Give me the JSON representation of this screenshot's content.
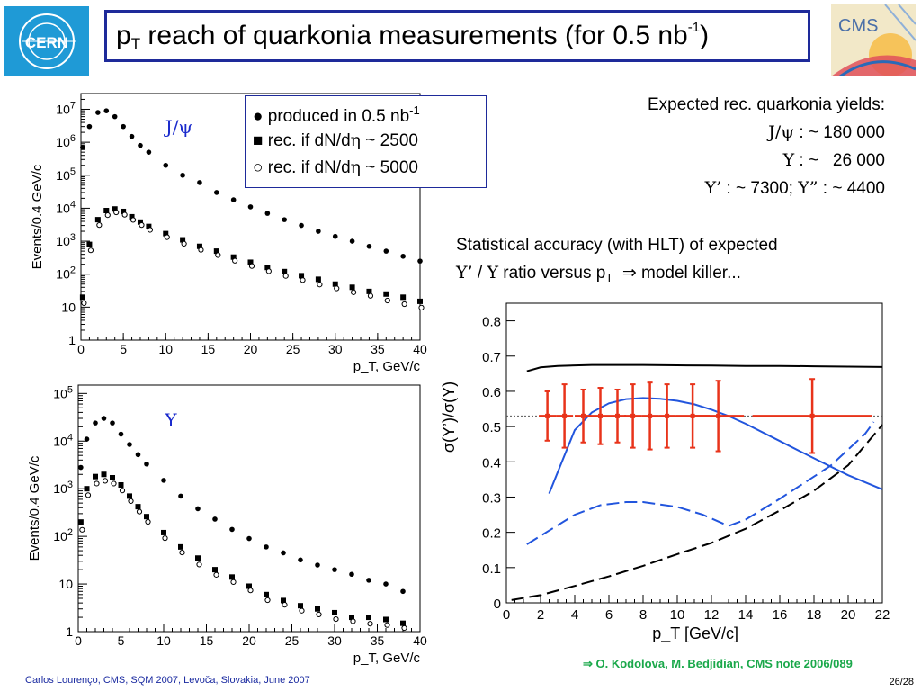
{
  "title": {
    "pre": "p",
    "sub": "T",
    "main": " reach of quarkonia measurements (for 0.5 nb",
    "sup": "-1",
    "post": ")"
  },
  "logos": {
    "cern": "CERN",
    "cms": "CMS"
  },
  "legend": {
    "produced": "produced in 0.5 nb",
    "produced_sup": "-1",
    "rec2500_pre": "rec. if dN/d",
    "rec2500_eta": "η",
    "rec2500_post": " ~ 2500",
    "rec5000_pre": "rec. if dN/d",
    "rec5000_eta": "η",
    "rec5000_post": " ~ 5000",
    "marker_produced": "●",
    "marker_rec2500": "■",
    "marker_rec5000": "○"
  },
  "yields": {
    "heading": "Expected rec. quarkonia yields:",
    "jpsi_label": "J/ψ",
    "jpsi_value": " : ~ 180 000",
    "upsilon_label": "Υ",
    "upsilon_value": " : ~   26 000",
    "up2_label": "Υ’",
    "up2_value": " : ~ 7300; ",
    "up3_label": "Υ”",
    "up3_value": " : ~ 4400"
  },
  "stat": {
    "line1": "Statistical accuracy (with HLT) of expected",
    "ratio_num": "Υ’",
    "ratio_sep": " / ",
    "ratio_den": "Υ",
    "line2_mid": " ratio versus p",
    "line2_sub": "T",
    "arrow": "⇒",
    "line2_end": " model killer..."
  },
  "reference": "⇒ O. Kodolova, M. Bedjidian, CMS note 2006/089",
  "footer": "Carlos Lourenço, CMS, SQM 2007, Levoča, Slovakia, June 2007",
  "page": "26/28",
  "colors": {
    "title_border": "#1e2a9a",
    "label_blue": "#1a2acc",
    "solid_blue": "#2255dd",
    "red": "#e8331a",
    "ref_green": "#1aa84a",
    "cern_blue": "#1f9ad6"
  },
  "chart_data": [
    {
      "id": "jpsi",
      "type": "scatter",
      "title": "J/ψ",
      "xlabel": "p_T, GeV/c",
      "ylabel": "Events/0.4 GeV/c",
      "log_y": true,
      "xlim": [
        0,
        40
      ],
      "ylim": [
        1,
        30000000
      ],
      "x_ticks": [
        "0",
        "5",
        "10",
        "15",
        "20",
        "25",
        "30",
        "35",
        "40"
      ],
      "y_ticks": [
        "1",
        "10",
        "10^2",
        "10^3",
        "10^4",
        "10^5",
        "10^6",
        "10^7"
      ],
      "series": [
        {
          "name": "produced in 0.5 nb-1",
          "marker": "filled-circle",
          "x": [
            0.2,
            1.0,
            2.0,
            3.0,
            4.0,
            5.0,
            6.0,
            7.0,
            8.0,
            10.0,
            12.0,
            14.0,
            16.0,
            18.0,
            20.0,
            22.0,
            24.0,
            26.0,
            28.0,
            30.0,
            32.0,
            34.0,
            36.0,
            38.0,
            40.0
          ],
          "y": [
            700000,
            3000000,
            8000000,
            9000000,
            6000000,
            3000000,
            1500000,
            800000,
            500000,
            200000,
            100000,
            60000,
            30000,
            18000,
            11000,
            7000,
            4500,
            3000,
            2000,
            1400,
            1000,
            700,
            500,
            350,
            250
          ]
        },
        {
          "name": "rec. if dN/dη ~ 2500",
          "marker": "filled-square",
          "x": [
            0.2,
            1.0,
            2.0,
            3.0,
            4.0,
            5.0,
            6.0,
            7.0,
            8.0,
            10.0,
            12.0,
            14.0,
            16.0,
            18.0,
            20.0,
            22.0,
            24.0,
            26.0,
            28.0,
            30.0,
            32.0,
            34.0,
            36.0,
            38.0,
            40.0
          ],
          "y": [
            20,
            800,
            4500,
            8500,
            9500,
            8000,
            5500,
            3800,
            2800,
            1700,
            1100,
            700,
            500,
            330,
            230,
            160,
            120,
            90,
            70,
            50,
            40,
            30,
            25,
            20,
            15
          ]
        },
        {
          "name": "rec. if dN/dη ~ 5000",
          "marker": "open-circle",
          "x": [
            0.2,
            1.0,
            2.0,
            3.0,
            4.0,
            5.0,
            6.0,
            7.0,
            8.0,
            10.0,
            12.0,
            14.0,
            16.0,
            18.0,
            20.0,
            22.0,
            24.0,
            26.0,
            28.0,
            30.0,
            32.0,
            34.0,
            36.0,
            38.0,
            40.0
          ],
          "y": [
            15,
            600,
            3500,
            7000,
            8500,
            7200,
            5000,
            3500,
            2500,
            1500,
            950,
            620,
            430,
            290,
            200,
            140,
            100,
            75,
            55,
            42,
            32,
            25,
            18,
            14,
            11
          ]
        }
      ]
    },
    {
      "id": "upsilon",
      "type": "scatter",
      "title": "Υ",
      "xlabel": "p_T, GeV/c",
      "ylabel": "Events/0.4 GeV/c",
      "log_y": true,
      "xlim": [
        0,
        40
      ],
      "ylim": [
        1,
        150000
      ],
      "x_ticks": [
        "0",
        "5",
        "10",
        "15",
        "20",
        "25",
        "30",
        "35",
        "40"
      ],
      "y_ticks": [
        "1",
        "10",
        "10^2",
        "10^3",
        "10^4",
        "10^5"
      ],
      "series": [
        {
          "name": "produced in 0.5 nb-1",
          "marker": "filled-circle",
          "x": [
            0.3,
            1.0,
            2.0,
            3.0,
            4.0,
            5.0,
            6.0,
            7.0,
            8.0,
            10.0,
            12.0,
            14.0,
            16.0,
            18.0,
            20.0,
            22.0,
            24.0,
            26.0,
            28.0,
            30.0,
            32.0,
            34.0,
            36.0,
            38.0
          ],
          "y": [
            2800,
            11000,
            24000,
            30000,
            24000,
            14000,
            8500,
            5200,
            3300,
            1500,
            700,
            380,
            230,
            140,
            90,
            60,
            45,
            32,
            25,
            20,
            16,
            12,
            10,
            7
          ]
        },
        {
          "name": "rec. if dN/dη ~ 2500",
          "marker": "filled-square",
          "x": [
            0.3,
            1.0,
            2.0,
            3.0,
            4.0,
            5.0,
            6.0,
            7.0,
            8.0,
            10.0,
            12.0,
            14.0,
            16.0,
            18.0,
            20.0,
            22.0,
            24.0,
            26.0,
            28.0,
            30.0,
            32.0,
            34.0,
            36.0,
            38.0
          ],
          "y": [
            200,
            1000,
            1800,
            2000,
            1700,
            1200,
            700,
            420,
            260,
            120,
            60,
            35,
            20,
            14,
            9,
            6,
            4.5,
            3.5,
            3,
            2.5,
            2,
            2,
            1.8,
            1.5
          ]
        },
        {
          "name": "rec. if dN/dη ~ 5000",
          "marker": "open-circle",
          "x": [
            0.3,
            1.0,
            2.0,
            3.0,
            4.0,
            5.0,
            6.0,
            7.0,
            8.0,
            10.0,
            12.0,
            14.0,
            16.0,
            18.0,
            20.0,
            22.0,
            24.0,
            26.0,
            28.0,
            30.0,
            32.0,
            34.0,
            36.0,
            38.0
          ],
          "y": [
            150,
            800,
            1400,
            1600,
            1400,
            1000,
            600,
            360,
            220,
            100,
            50,
            28,
            17,
            12,
            8,
            5,
            4,
            3,
            2.5,
            2,
            1.8,
            1.6,
            1.5,
            1.3
          ]
        }
      ]
    },
    {
      "id": "ratio",
      "type": "line",
      "title": "",
      "xlabel": "p_T [GeV/c]",
      "ylabel": "σ(Υ’)/σ(Υ)",
      "xlim": [
        0,
        22
      ],
      "ylim": [
        0,
        0.85
      ],
      "x_ticks": [
        "0",
        "2",
        "4",
        "6",
        "8",
        "10",
        "12",
        "14",
        "16",
        "18",
        "20",
        "22"
      ],
      "y_ticks": [
        "0",
        "0.1",
        "0.2",
        "0.3",
        "0.4",
        "0.5",
        "0.6",
        "0.7",
        "0.8"
      ],
      "reference_line": 0.53,
      "series": [
        {
          "style": "solid",
          "color": "#000000",
          "x": [
            1.2,
            2,
            3,
            5,
            8,
            10,
            12,
            14,
            16,
            18,
            20,
            22
          ],
          "y": [
            0.657,
            0.668,
            0.672,
            0.675,
            0.675,
            0.674,
            0.673,
            0.672,
            0.672,
            0.671,
            0.67,
            0.669
          ]
        },
        {
          "style": "solid",
          "color": "#2255dd",
          "x": [
            2.5,
            3,
            3.5,
            4,
            5,
            6,
            7,
            8,
            9,
            10,
            11,
            12,
            13,
            14,
            16,
            18,
            20,
            22
          ],
          "y": [
            0.31,
            0.37,
            0.43,
            0.49,
            0.54,
            0.566,
            0.578,
            0.581,
            0.579,
            0.573,
            0.563,
            0.548,
            0.53,
            0.508,
            0.459,
            0.41,
            0.362,
            0.322
          ]
        },
        {
          "style": "dashed",
          "color": "#2255dd",
          "x": [
            1.2,
            2.5,
            4,
            5.5,
            7,
            8,
            10,
            11.5,
            13,
            14,
            16,
            18,
            19,
            20,
            21,
            21.5
          ],
          "y": [
            0.166,
            0.205,
            0.25,
            0.277,
            0.286,
            0.286,
            0.272,
            0.25,
            0.218,
            0.236,
            0.295,
            0.358,
            0.39,
            0.435,
            0.48,
            0.513
          ]
        },
        {
          "style": "dashed",
          "color": "#000000",
          "x": [
            0.3,
            2,
            4,
            6,
            8,
            10,
            12,
            14,
            16,
            18,
            20,
            22
          ],
          "y": [
            0.008,
            0.022,
            0.048,
            0.075,
            0.105,
            0.138,
            0.17,
            0.21,
            0.262,
            0.318,
            0.39,
            0.505
          ]
        },
        {
          "style": "markers",
          "color": "#e8331a",
          "x": [
            2.4,
            3.4,
            4.5,
            5.5,
            6.5,
            7.4,
            8.4,
            9.4,
            10.9,
            12.4,
            17.9
          ],
          "y": [
            0.53,
            0.53,
            0.53,
            0.53,
            0.53,
            0.53,
            0.53,
            0.53,
            0.53,
            0.53,
            0.53
          ],
          "yerr": [
            0.07,
            0.09,
            0.075,
            0.08,
            0.075,
            0.09,
            0.095,
            0.09,
            0.09,
            0.1,
            0.105
          ],
          "xerr": [
            0.5,
            0.5,
            0.5,
            0.5,
            0.5,
            0.5,
            0.5,
            0.5,
            1.0,
            1.5,
            3.5
          ]
        }
      ]
    }
  ]
}
